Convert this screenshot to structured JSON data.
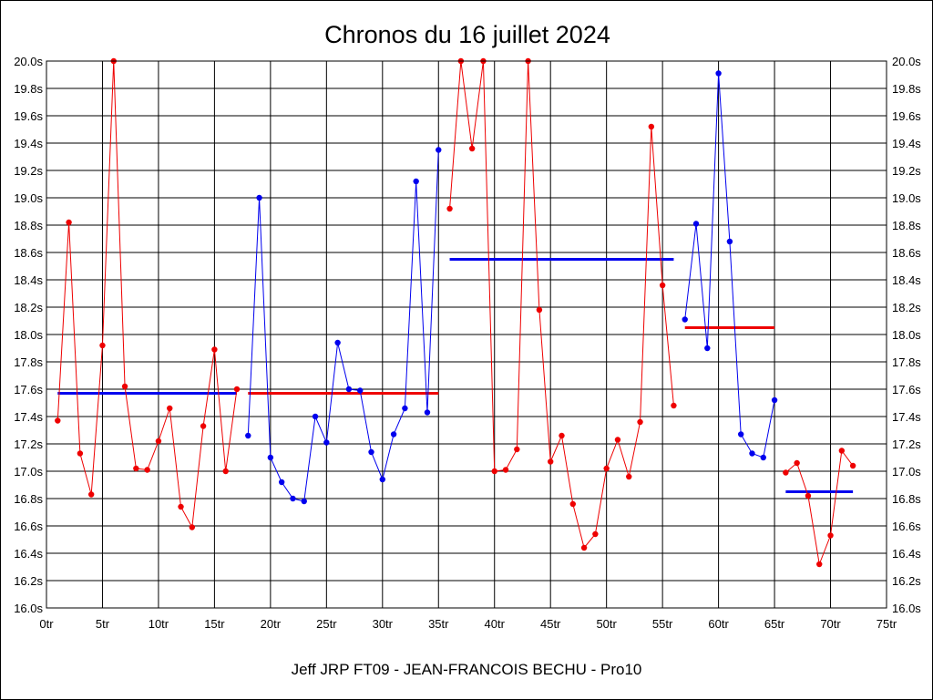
{
  "chart_data": {
    "type": "line",
    "title": "Chronos du 16 juillet 2024",
    "subtitle": "Jeff JRP FT09 - JEAN-FRANCOIS BECHU - Pro10",
    "xlim": [
      0,
      75
    ],
    "ylim": [
      16.0,
      20.0
    ],
    "x_ticks": [
      0,
      5,
      10,
      15,
      20,
      25,
      30,
      35,
      40,
      45,
      50,
      55,
      60,
      65,
      70,
      75
    ],
    "x_tick_labels": [
      "0tr",
      "5tr",
      "10tr",
      "15tr",
      "20tr",
      "25tr",
      "30tr",
      "35tr",
      "40tr",
      "45tr",
      "50tr",
      "55tr",
      "60tr",
      "65tr",
      "70tr",
      "75tr"
    ],
    "y_ticks": [
      16.0,
      16.2,
      16.4,
      16.6,
      16.8,
      17.0,
      17.2,
      17.4,
      17.6,
      17.8,
      18.0,
      18.2,
      18.4,
      18.6,
      18.8,
      19.0,
      19.2,
      19.4,
      19.6,
      19.8,
      20.0
    ],
    "y_tick_labels": [
      "16.0s",
      "16.2s",
      "16.4s",
      "16.6s",
      "16.8s",
      "17.0s",
      "17.2s",
      "17.4s",
      "17.6s",
      "17.8s",
      "18.0s",
      "18.2s",
      "18.4s",
      "18.6s",
      "18.8s",
      "19.0s",
      "19.2s",
      "19.4s",
      "19.6s",
      "19.8s",
      "20.0s"
    ],
    "grid": true,
    "y_axis_labels_both_sides": true,
    "colors": {
      "red": "#ee0000",
      "blue": "#0000ee"
    },
    "series": [
      {
        "color": "red",
        "x": [
          1,
          2,
          3,
          4,
          5,
          6,
          7,
          8,
          9,
          10,
          11,
          12,
          13,
          14,
          15,
          16,
          17
        ],
        "y": [
          17.37,
          18.82,
          17.13,
          16.83,
          17.92,
          20.0,
          17.62,
          17.02,
          17.01,
          17.22,
          17.46,
          16.74,
          16.59,
          17.33,
          17.89,
          17.0,
          17.6
        ]
      },
      {
        "color": "blue",
        "x": [
          18,
          19,
          20,
          21,
          22,
          23,
          24,
          25,
          26,
          27,
          28,
          29,
          30,
          31,
          32,
          33,
          34,
          35
        ],
        "y": [
          17.26,
          19.0,
          17.1,
          16.92,
          16.8,
          16.78,
          17.4,
          17.21,
          17.94,
          17.6,
          17.59,
          17.14,
          16.94,
          17.27,
          17.46,
          19.12,
          17.43,
          19.35
        ]
      },
      {
        "color": "red",
        "x": [
          36,
          37,
          38,
          39,
          40,
          41,
          42,
          43,
          44,
          45,
          46,
          47,
          48,
          49,
          50,
          51,
          52,
          53,
          54,
          55,
          56
        ],
        "y": [
          18.92,
          20.0,
          19.36,
          20.0,
          17.0,
          17.01,
          17.16,
          20.0,
          18.18,
          17.07,
          17.26,
          16.76,
          16.44,
          16.54,
          17.02,
          17.23,
          16.96,
          17.36,
          19.52,
          18.36,
          17.48
        ]
      },
      {
        "color": "blue",
        "x": [
          57,
          58,
          59,
          60,
          61,
          62,
          63,
          64,
          65
        ],
        "y": [
          18.11,
          18.81,
          17.9,
          19.91,
          18.68,
          17.27,
          17.13,
          17.1,
          17.52
        ]
      },
      {
        "color": "red",
        "x": [
          66,
          67,
          68,
          69,
          70,
          71,
          72
        ],
        "y": [
          16.99,
          17.06,
          16.82,
          16.32,
          16.53,
          17.15,
          17.04
        ]
      }
    ],
    "averages": [
      {
        "color": "blue",
        "x": [
          1,
          17
        ],
        "y": 17.57
      },
      {
        "color": "red",
        "x": [
          18,
          35
        ],
        "y": 17.57
      },
      {
        "color": "blue",
        "x": [
          36,
          56
        ],
        "y": 18.55
      },
      {
        "color": "red",
        "x": [
          57,
          65
        ],
        "y": 18.05
      },
      {
        "color": "blue",
        "x": [
          66,
          72
        ],
        "y": 16.85
      }
    ]
  }
}
